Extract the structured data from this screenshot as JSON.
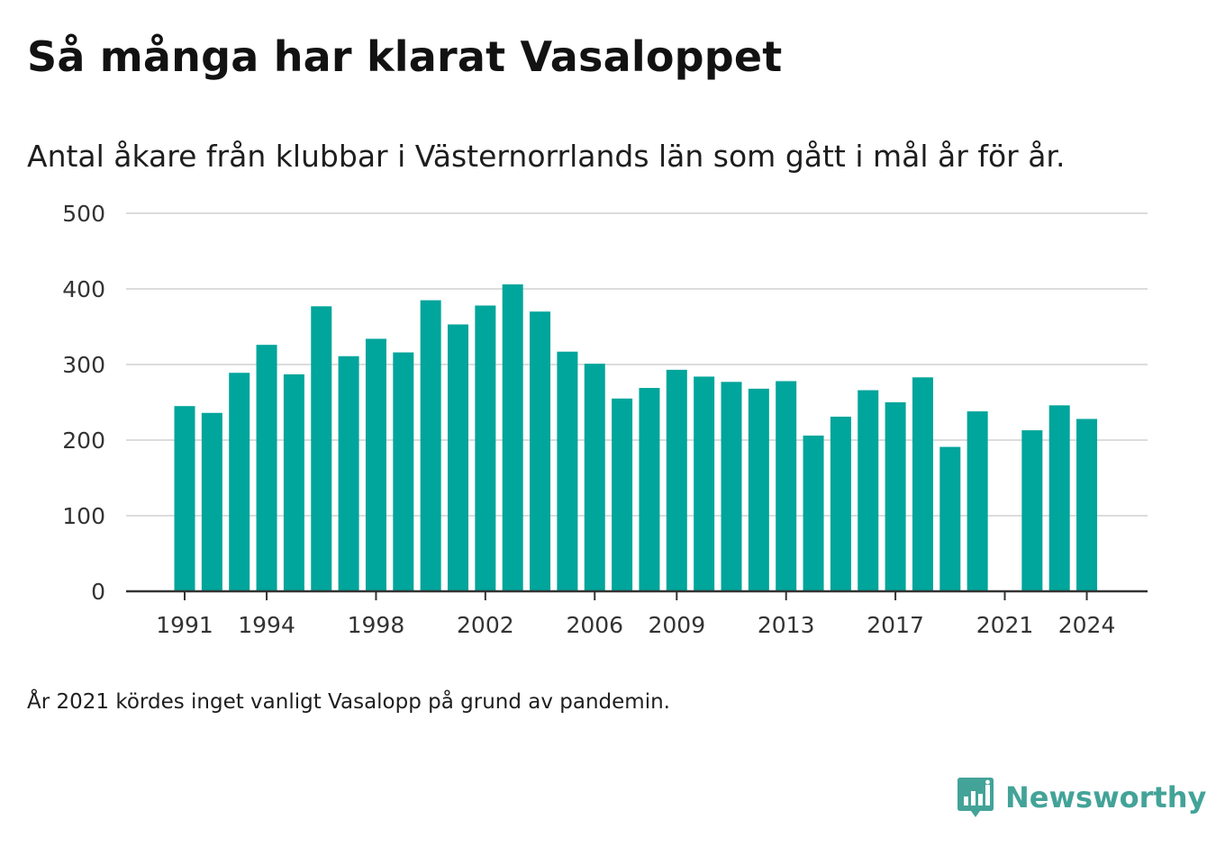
{
  "header": {
    "title": "Så många har klarat Vasaloppet",
    "subtitle": "Antal åkare från klubbar i Västernorrlands län som gått i mål år för år."
  },
  "footer": {
    "note": "År 2021 kördes inget vanligt Vasalopp på grund av pandemin.",
    "brand": "Newsworthy",
    "brand_icon": "bar-chart-icon"
  },
  "colors": {
    "bar": "#00a59b",
    "grid": "#dcdcdc",
    "axis": "#333333",
    "brand": "#43a398"
  },
  "chart_data": {
    "type": "bar",
    "title": "Så många har klarat Vasaloppet",
    "subtitle": "Antal åkare från klubbar i Västernorrlands län som gått i mål år för år.",
    "xlabel": "",
    "ylabel": "",
    "ylim": [
      0,
      500
    ],
    "yticks": [
      0,
      100,
      200,
      300,
      400,
      500
    ],
    "xtick_labels": [
      "1991",
      "1994",
      "1998",
      "2002",
      "2006",
      "2009",
      "2013",
      "2017",
      "2021",
      "2024"
    ],
    "grid": true,
    "categories": [
      1991,
      1992,
      1993,
      1994,
      1995,
      1996,
      1997,
      1998,
      1999,
      2000,
      2001,
      2002,
      2003,
      2004,
      2005,
      2006,
      2007,
      2008,
      2009,
      2010,
      2011,
      2012,
      2013,
      2014,
      2015,
      2016,
      2017,
      2018,
      2019,
      2020,
      2021,
      2022,
      2023,
      2024
    ],
    "values": [
      245,
      236,
      289,
      326,
      287,
      377,
      311,
      334,
      316,
      385,
      353,
      378,
      406,
      370,
      317,
      301,
      255,
      269,
      293,
      284,
      277,
      268,
      278,
      206,
      231,
      266,
      250,
      283,
      191,
      238,
      null,
      213,
      246,
      228
    ]
  }
}
